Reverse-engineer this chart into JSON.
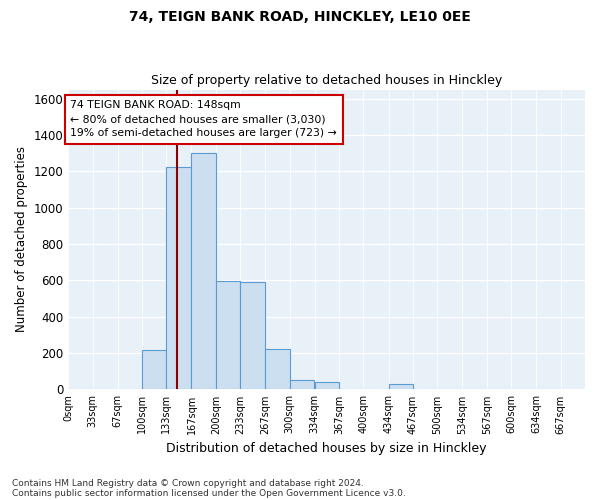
{
  "title1": "74, TEIGN BANK ROAD, HINCKLEY, LE10 0EE",
  "title2": "Size of property relative to detached houses in Hinckley",
  "xlabel": "Distribution of detached houses by size in Hinckley",
  "ylabel": "Number of detached properties",
  "bins": [
    0,
    33,
    67,
    100,
    133,
    167,
    200,
    233,
    267,
    300,
    334,
    367,
    400,
    434,
    467,
    500,
    534,
    567,
    600,
    634,
    667
  ],
  "counts": [
    0,
    0,
    0,
    215,
    1225,
    1300,
    595,
    590,
    225,
    50,
    40,
    0,
    0,
    30,
    0,
    0,
    0,
    0,
    0,
    0
  ],
  "bar_color": "#ccdff0",
  "bar_edge_color": "#5b9bd5",
  "vline_x": 148,
  "vline_color": "#8b0000",
  "annotation_line1": "74 TEIGN BANK ROAD: 148sqm",
  "annotation_line2": "← 80% of detached houses are smaller (3,030)",
  "annotation_line3": "19% of semi-detached houses are larger (723) →",
  "annotation_box_color": "#ffffff",
  "annotation_border_color": "#cc0000",
  "ylim": [
    0,
    1650
  ],
  "yticks": [
    0,
    200,
    400,
    600,
    800,
    1000,
    1200,
    1400,
    1600
  ],
  "footnote1": "Contains HM Land Registry data © Crown copyright and database right 2024.",
  "footnote2": "Contains public sector information licensed under the Open Government Licence v3.0.",
  "bg_color": "#ffffff",
  "plot_bg_color": "#e8f0f8"
}
